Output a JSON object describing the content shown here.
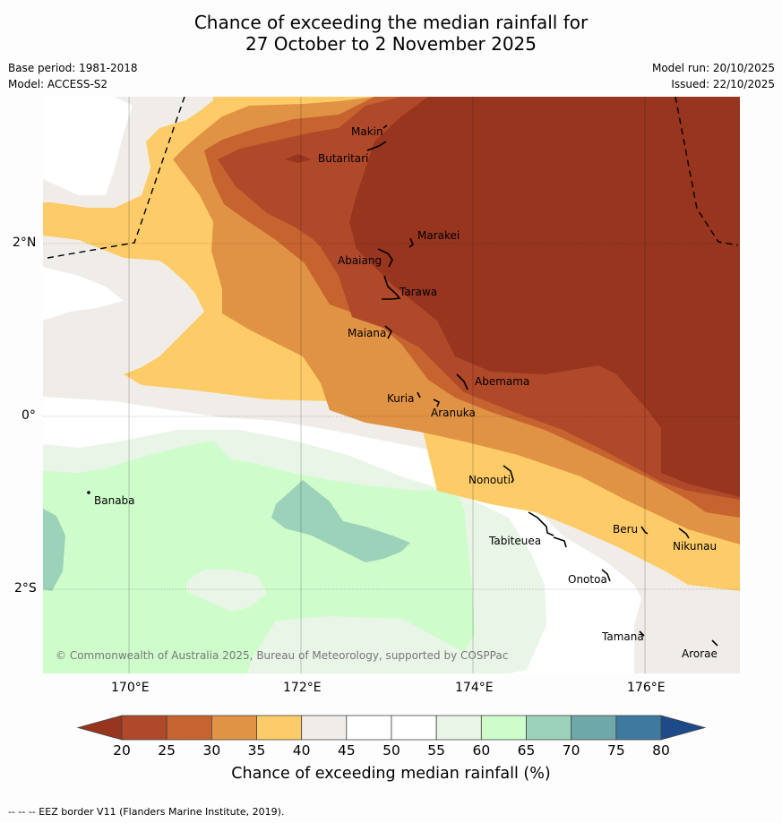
{
  "title": {
    "line1": "Chance of exceeding the median rainfall for",
    "line2": "27 October to 2 November 2025"
  },
  "meta": {
    "base_period": "Base period: 1981-2018",
    "model": "Model: ACCESS-S2",
    "model_run": "Model run: 20/10/2025",
    "issued": "Issued: 22/10/2025"
  },
  "map": {
    "lon_labels": [
      "170°E",
      "172°E",
      "174°E",
      "176°E"
    ],
    "lat_labels": [
      "2°N",
      "0°",
      "2°S"
    ],
    "copyright": "© Commonwealth of Australia 2025, Bureau of Meteorology, supported by COSPPac",
    "islands": [
      "Makin",
      "Butaritari",
      "Marakei",
      "Abaiang",
      "Tarawa",
      "Maiana",
      "Abemama",
      "Kuria",
      "Aranuka",
      "Banaba",
      "Nonouti",
      "Tabiteuea",
      "Beru",
      "Nikunau",
      "Onotoa",
      "Tamana",
      "Arorae"
    ]
  },
  "colorbar": {
    "ticks": [
      "20",
      "25",
      "30",
      "35",
      "40",
      "45",
      "50",
      "55",
      "60",
      "65",
      "70",
      "75",
      "80"
    ],
    "colors": [
      "#b0482a",
      "#c7632f",
      "#e09344",
      "#fdcc68",
      "#f0ede9",
      "#ffffff",
      "#ffffff",
      "#e9f5e7",
      "#cefdcb",
      "#9dd2ba",
      "#6fa8a9",
      "#3e7a9f"
    ],
    "under_color": "#97351f",
    "over_color": "#1d4a88",
    "label": "Chance of exceeding median rainfall (%)"
  },
  "footnote": "--  --  -- EEZ border V11 (Flanders Marine Institute, 2019)."
}
